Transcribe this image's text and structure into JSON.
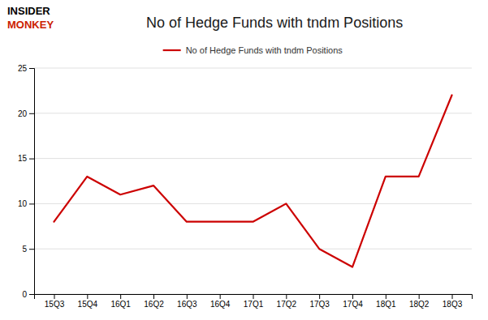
{
  "chart_data": {
    "type": "line",
    "title": "No of Hedge Funds with tndm Positions",
    "categories": [
      "15Q3",
      "15Q4",
      "16Q1",
      "16Q2",
      "16Q3",
      "16Q4",
      "17Q1",
      "17Q2",
      "17Q3",
      "17Q4",
      "18Q1",
      "18Q2",
      "18Q3"
    ],
    "series": [
      {
        "name": "No of Hedge Funds with tndm Positions",
        "color": "#cc0000",
        "values": [
          8,
          13,
          11,
          12,
          8,
          8,
          8,
          10,
          5,
          3,
          13,
          13,
          22
        ]
      }
    ],
    "ylim": [
      0,
      25
    ],
    "yticks": [
      0,
      5,
      10,
      15,
      20,
      25
    ],
    "grid": true,
    "legend": "top",
    "annotations": [
      {
        "text": "INSIDER",
        "color": "#000000"
      },
      {
        "text": "MONKEY",
        "color": "#cc2200"
      }
    ]
  }
}
